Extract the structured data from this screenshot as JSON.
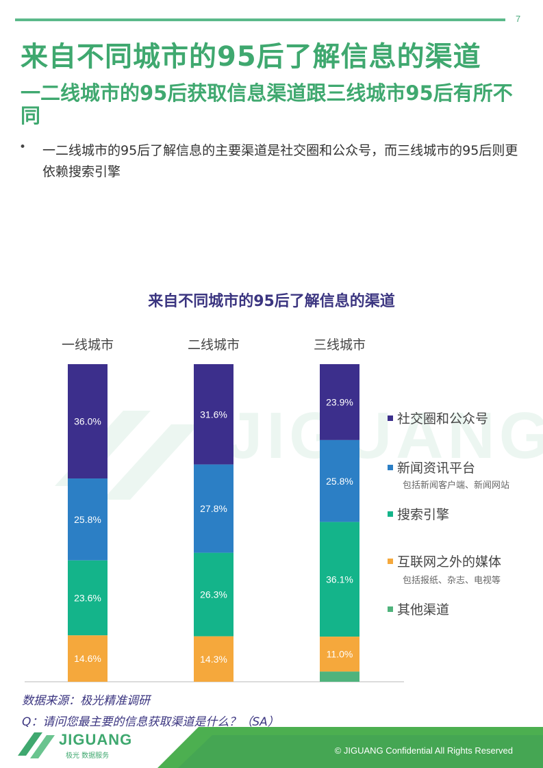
{
  "page": {
    "number": "7",
    "title": "来自不同城市的95后了解信息的渠道",
    "subtitle": "一二线城市的95后获取信息渠道跟三线城市95后有所不同",
    "bullet": "一二线城市的95后了解信息的主要渠道是社交圈和公众号，而三线城市的95后则更依赖搜索引擎",
    "source": "数据来源：极光精准调研",
    "question": "Q：请问您最主要的信息获取渠道是什么？（SA）",
    "footer": "© JIGUANG  Confidential  All Rights Reserved",
    "watermark": "JIGUANG",
    "logo": {
      "word": "JIGUANG",
      "tagline": "极光 数据服务"
    }
  },
  "colors": {
    "accent": "#3fa86f",
    "title_purple": "#3b3580"
  },
  "chart_data": {
    "type": "bar",
    "stacked": true,
    "title": "来自不同城市的95后了解信息的渠道",
    "categories": [
      "一线城市",
      "二线城市",
      "三线城市"
    ],
    "ylim": [
      0,
      100
    ],
    "series": [
      {
        "name": "社交圈和公众号",
        "color": "#3c2f8c",
        "values": [
          36.0,
          31.6,
          23.9
        ]
      },
      {
        "name": "新闻资讯平台",
        "note": "包括新闻客户端、新闻网站",
        "color": "#2c7fc5",
        "values": [
          25.8,
          27.8,
          25.8
        ]
      },
      {
        "name": "搜索引擎",
        "color": "#14b48a",
        "values": [
          23.6,
          26.3,
          36.1
        ]
      },
      {
        "name": "互联网之外的媒体",
        "note": "包括报纸、杂志、电视等",
        "color": "#f5a83c",
        "values": [
          14.6,
          14.3,
          11.0
        ]
      },
      {
        "name": "其他渠道",
        "color": "#4fb37c",
        "values": [
          0.0,
          0.0,
          3.2
        ]
      }
    ],
    "data_labels": [
      [
        "36.0%",
        "31.6%",
        "23.9%"
      ],
      [
        "25.8%",
        "27.8%",
        "25.8%"
      ],
      [
        "23.6%",
        "26.3%",
        "36.1%"
      ],
      [
        "14.6%",
        "14.3%",
        "11.0%"
      ],
      [
        "",
        "",
        ""
      ]
    ],
    "legend_position": "right"
  }
}
